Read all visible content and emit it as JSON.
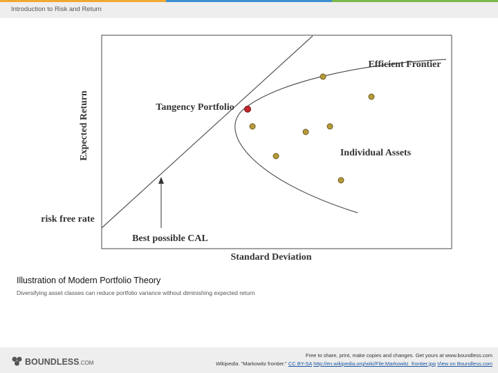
{
  "header": {
    "title": "Introduction to Risk and Return"
  },
  "figure": {
    "y_axis_label": "Expected Return",
    "x_axis_label": "Standard Deviation",
    "labels": {
      "efficient_frontier": "Efficient Frontier",
      "tangency_portfolio": "Tangency Portfolio",
      "individual_assets": "Individual Assets",
      "risk_free_rate": "risk free rate",
      "best_cal": "Best possible CAL"
    }
  },
  "caption": {
    "title": "Illustration of Modern Portfolio Theory",
    "text": "Diversifying asset classes can reduce portfolio variance without diminishing expected return"
  },
  "footer": {
    "logo": "BOUNDLESS",
    "logo_suffix": ".COM",
    "notice": "Free to share, print, make copies and changes. Get yours at www.boundless.com",
    "attribution": {
      "source": "Wikipedia",
      "title": ". \"Markowitz frontier.\"",
      "license": "CC BY-SA",
      "url": "http://en.wikipedia.org/wiki/File:Markowitz_frontier.jpg",
      "view": "View on Boundless.com"
    }
  }
}
